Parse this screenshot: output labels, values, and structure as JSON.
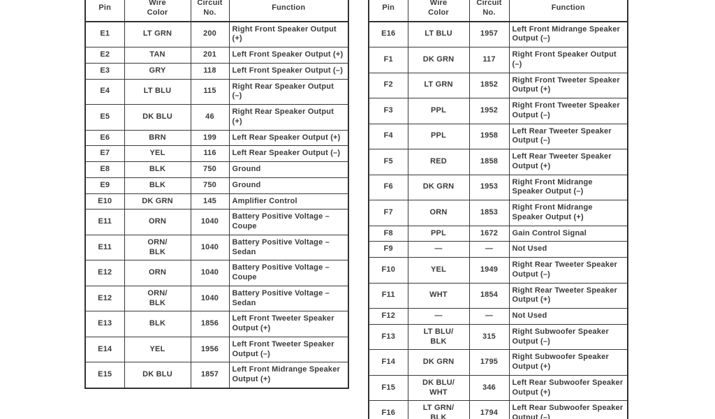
{
  "page": {
    "kind": "scanned-wiring-pinout-tables",
    "background_color": "#fdfdfd",
    "text_color": "#3b3b3b",
    "border_color": "#3a3a3a"
  },
  "tables": [
    {
      "id": "left",
      "columns": [
        "Pin",
        "Wire\nColor",
        "Circuit\nNo.",
        "Function"
      ],
      "rows": [
        [
          "E1",
          "LT GRN",
          "200",
          "Right Front Speaker Output (+)"
        ],
        [
          "E2",
          "TAN",
          "201",
          "Left Front Speaker Output (+)"
        ],
        [
          "E3",
          "GRY",
          "118",
          "Left Front Speaker Output (–)"
        ],
        [
          "E4",
          "LT BLU",
          "115",
          "Right Rear Speaker Output (–)"
        ],
        [
          "E5",
          "DK BLU",
          "46",
          "Right Rear Speaker Output (+)"
        ],
        [
          "E6",
          "BRN",
          "199",
          "Left Rear Speaker Output (+)"
        ],
        [
          "E7",
          "YEL",
          "116",
          "Left Rear Speaker Output (–)"
        ],
        [
          "E8",
          "BLK",
          "750",
          "Ground"
        ],
        [
          "E9",
          "BLK",
          "750",
          "Ground"
        ],
        [
          "E10",
          "DK GRN",
          "145",
          "Amplifier Control"
        ],
        [
          "E11",
          "ORN",
          "1040",
          "Battery Positive Voltage – Coupe"
        ],
        [
          "E11",
          "ORN/\nBLK",
          "1040",
          "Battery Positive Voltage – Sedan"
        ],
        [
          "E12",
          "ORN",
          "1040",
          "Battery Positive Voltage – Coupe"
        ],
        [
          "E12",
          "ORN/\nBLK",
          "1040",
          "Battery Positive Voltage – Sedan"
        ],
        [
          "E13",
          "BLK",
          "1856",
          "Left Front Tweeter Speaker Output (+)"
        ],
        [
          "E14",
          "YEL",
          "1956",
          "Left Front Tweeter Speaker Output (–)"
        ],
        [
          "E15",
          "DK BLU",
          "1857",
          "Left Front Midrange Speaker Output (+)"
        ]
      ]
    },
    {
      "id": "right",
      "columns": [
        "Pin",
        "Wire\nColor",
        "Circuit\nNo.",
        "Function"
      ],
      "rows": [
        [
          "E16",
          "LT BLU",
          "1957",
          "Left Front Midrange Speaker Output (–)"
        ],
        [
          "F1",
          "DK GRN",
          "117",
          "Right Front Speaker Output (–)"
        ],
        [
          "F2",
          "LT GRN",
          "1852",
          "Right Front Tweeter Speaker Output (+)"
        ],
        [
          "F3",
          "PPL",
          "1952",
          "Right Front Tweeter Speaker Output (–)"
        ],
        [
          "F4",
          "PPL",
          "1958",
          "Left Rear Tweeter Speaker Output (–)"
        ],
        [
          "F5",
          "RED",
          "1858",
          "Left Rear Tweeter Speaker Output (+)"
        ],
        [
          "F6",
          "DK GRN",
          "1953",
          "Right Front Midrange Speaker Output (–)"
        ],
        [
          "F7",
          "ORN",
          "1853",
          "Right Front Midrange Speaker Output (+)"
        ],
        [
          "F8",
          "PPL",
          "1672",
          "Gain Control Signal"
        ],
        [
          "F9",
          "—",
          "—",
          "Not Used"
        ],
        [
          "F10",
          "YEL",
          "1949",
          "Right Rear Tweeter Speaker Output (–)"
        ],
        [
          "F11",
          "WHT",
          "1854",
          "Right Rear Tweeter Speaker Output (+)"
        ],
        [
          "F12",
          "—",
          "—",
          "Not Used"
        ],
        [
          "F13",
          "LT BLU/\nBLK",
          "315",
          "Right Subwoofer Speaker Output (–)"
        ],
        [
          "F14",
          "DK GRN",
          "1795",
          "Right Subwoofer Speaker Output (+)"
        ],
        [
          "F15",
          "DK BLU/\nWHT",
          "346",
          "Left Rear Subwoofer Speaker Output (+)"
        ],
        [
          "F16",
          "LT GRN/\nBLK",
          "1794",
          "Left Rear Subwoofer Speaker Output (–)"
        ]
      ]
    }
  ]
}
